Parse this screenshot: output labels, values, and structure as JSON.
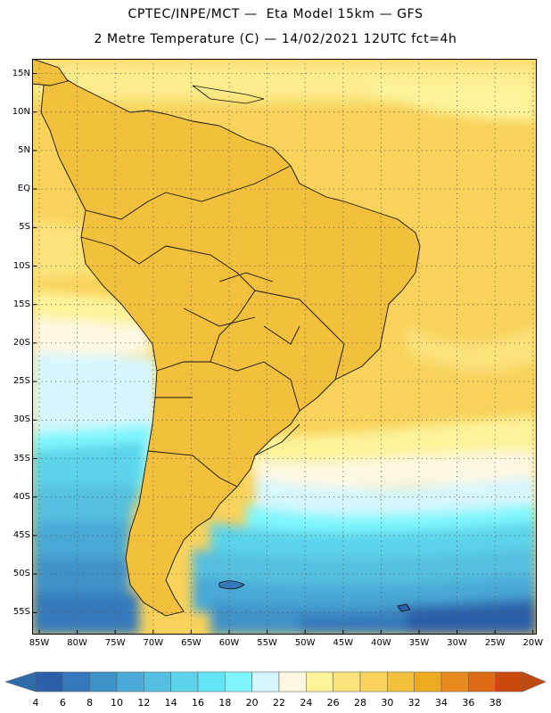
{
  "header": {
    "line1": "CPTEC/INPE/MCT —  Eta Model 15km — GFS",
    "line2": "2 Metre Temperature (C) — 14/02/2021 12UTC fct=4h"
  },
  "map": {
    "lat_labels": [
      "15N",
      "10N",
      "5N",
      "EQ",
      "5S",
      "10S",
      "15S",
      "20S",
      "25S",
      "30S",
      "35S",
      "40S",
      "45S",
      "50S",
      "55S"
    ],
    "lon_labels": [
      "85W",
      "80W",
      "75W",
      "70W",
      "65W",
      "60W",
      "55W",
      "50W",
      "45W",
      "40W",
      "35W",
      "30W",
      "25W",
      "20W"
    ]
  },
  "legend": {
    "ticks": [
      "4",
      "6",
      "8",
      "10",
      "12",
      "14",
      "16",
      "18",
      "20",
      "22",
      "24",
      "26",
      "28",
      "30",
      "32",
      "34",
      "36",
      "38"
    ],
    "colors": [
      "#2b5fa8",
      "#3479bb",
      "#3f92c8",
      "#4aa9d6",
      "#54bfdf",
      "#5cd3ea",
      "#62e6f5",
      "#7ff6fd",
      "#d6f6fd",
      "#fdf8e2",
      "#fdf39a",
      "#fbe27a",
      "#f8d25a",
      "#f2c03c",
      "#efab1f",
      "#e98b1c",
      "#dd6a15",
      "#c94a0c"
    ],
    "low_color": "#2f6aa9",
    "high_color": "#bf4a10"
  }
}
